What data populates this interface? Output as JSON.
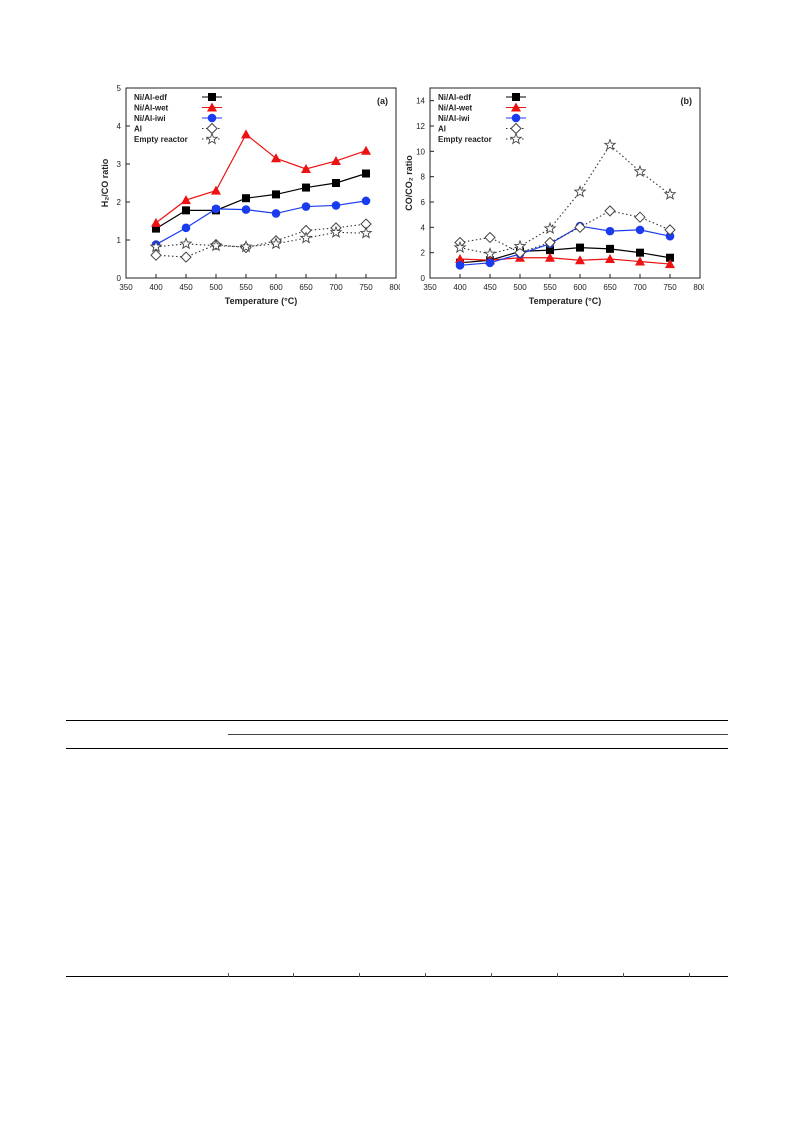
{
  "chart_data": [
    {
      "type": "line",
      "panel_label": "(a)",
      "xlabel": "Temperature (°C)",
      "ylabel": "H₂/CO ratio",
      "xlim": [
        350,
        800
      ],
      "ylim": [
        0,
        5
      ],
      "xticks": [
        350,
        400,
        450,
        500,
        550,
        600,
        650,
        700,
        750,
        800
      ],
      "yticks": [
        0,
        1,
        2,
        3,
        4,
        5
      ],
      "legend_position": "top-left",
      "x": [
        400,
        450,
        500,
        550,
        600,
        650,
        700,
        750
      ],
      "series": [
        {
          "name": "Ni/Al-edf",
          "color": "#000000",
          "marker": "square",
          "line": "solid",
          "values": [
            1.3,
            1.78,
            1.78,
            2.1,
            2.2,
            2.38,
            2.5,
            2.75
          ]
        },
        {
          "name": "Ni/Al-wet",
          "color": "#ee1111",
          "marker": "triangle",
          "line": "solid",
          "values": [
            1.45,
            2.05,
            2.3,
            3.78,
            3.15,
            2.87,
            3.08,
            3.35
          ]
        },
        {
          "name": "Ni/Al-iwi",
          "color": "#1a3cf0",
          "marker": "circle",
          "line": "solid",
          "values": [
            0.88,
            1.32,
            1.82,
            1.8,
            1.7,
            1.88,
            1.91,
            2.03
          ]
        },
        {
          "name": "Al",
          "color": "#333333",
          "marker": "diamond",
          "line": "dotted",
          "values": [
            0.6,
            0.55,
            0.88,
            0.8,
            0.98,
            1.25,
            1.32,
            1.42
          ]
        },
        {
          "name": "Empty reactor",
          "color": "#333333",
          "marker": "star",
          "line": "dotted",
          "values": [
            0.82,
            0.9,
            0.85,
            0.82,
            0.9,
            1.05,
            1.2,
            1.18
          ]
        }
      ]
    },
    {
      "type": "line",
      "panel_label": "(b)",
      "xlabel": "Temperature (°C)",
      "ylabel": "CO/CO₂ ratio",
      "xlim": [
        350,
        800
      ],
      "ylim": [
        0,
        15
      ],
      "xticks": [
        350,
        400,
        450,
        500,
        550,
        600,
        650,
        700,
        750,
        800
      ],
      "yticks": [
        0,
        2,
        4,
        6,
        8,
        10,
        12,
        14
      ],
      "legend_position": "top-left",
      "x": [
        400,
        450,
        500,
        550,
        600,
        650,
        700,
        750
      ],
      "series": [
        {
          "name": "Ni/Al-edf",
          "color": "#000000",
          "marker": "square",
          "line": "solid",
          "values": [
            1.2,
            1.4,
            2.1,
            2.2,
            2.4,
            2.3,
            2.0,
            1.6
          ]
        },
        {
          "name": "Ni/Al-wet",
          "color": "#ee1111",
          "marker": "triangle",
          "line": "solid",
          "values": [
            1.5,
            1.4,
            1.6,
            1.6,
            1.4,
            1.5,
            1.3,
            1.1
          ]
        },
        {
          "name": "Ni/Al-iwi",
          "color": "#1a3cf0",
          "marker": "circle",
          "line": "solid",
          "values": [
            1.0,
            1.2,
            1.9,
            2.7,
            4.1,
            3.7,
            3.8,
            3.3
          ]
        },
        {
          "name": "Al",
          "color": "#333333",
          "marker": "diamond",
          "line": "dotted",
          "values": [
            2.8,
            3.2,
            2.0,
            2.8,
            4.0,
            5.3,
            4.8,
            3.8
          ]
        },
        {
          "name": "Empty reactor",
          "color": "#333333",
          "marker": "star",
          "line": "dotted",
          "values": [
            2.4,
            1.9,
            2.5,
            3.9,
            6.8,
            10.5,
            8.4,
            6.6
          ]
        }
      ]
    }
  ]
}
